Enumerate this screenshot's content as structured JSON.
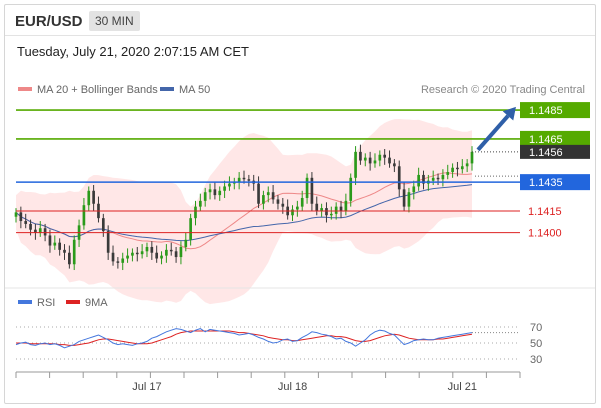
{
  "header": {
    "pair": "EUR/USD",
    "timeframe": "30 MIN"
  },
  "datetime": "Tuesday, July 21, 2020 2:07:15 AM CET",
  "legend": {
    "ma20": "MA 20 + Bollinger Bands",
    "ma50": "MA 50",
    "credit": "Research © 2020 Trading Central",
    "rsi": "RSI",
    "ma9": "9MA"
  },
  "colors": {
    "resistance": "#55aa00",
    "support": "#dd2222",
    "pivot": "#2266dd",
    "candle_up": "#2a9a1a",
    "candle_down": "#3a3a3a",
    "bollinger": "#ffc9c9",
    "ma20": "#ee8888",
    "ma50": "#4466aa",
    "rsi": "#4477dd",
    "rsi_ma": "#dd2222"
  },
  "chart_data": [
    {
      "type": "candlestick",
      "ylim": [
        1.1365,
        1.1492
      ],
      "x_ticks": [
        {
          "label": "Jul 17",
          "index": 27
        },
        {
          "label": "Jul 18",
          "index": 57
        },
        {
          "label": "Jul 21",
          "index": 92
        }
      ],
      "levels": [
        {
          "value": 1.1485,
          "label": "1.1485",
          "type": "resistance"
        },
        {
          "value": 1.1465,
          "label": "1.1465",
          "type": "resistance"
        },
        {
          "value": 1.1435,
          "label": "1.1435",
          "type": "pivot"
        },
        {
          "value": 1.1415,
          "label": "1.1415",
          "type": "support"
        },
        {
          "value": 1.14,
          "label": "1.1400",
          "type": "support"
        }
      ],
      "last_price": {
        "value": 1.1456,
        "label": "1.1456"
      },
      "close": [
        1.1414,
        1.1408,
        1.1406,
        1.1402,
        1.14,
        1.1403,
        1.1398,
        1.1391,
        1.1393,
        1.1388,
        1.1386,
        1.1378,
        1.1395,
        1.1405,
        1.1419,
        1.1429,
        1.142,
        1.141,
        1.1401,
        1.1386,
        1.138,
        1.1379,
        1.1382,
        1.1384,
        1.1386,
        1.1385,
        1.1387,
        1.139,
        1.1386,
        1.1382,
        1.1384,
        1.1388,
        1.1387,
        1.1383,
        1.139,
        1.1395,
        1.141,
        1.1418,
        1.1422,
        1.1428,
        1.143,
        1.1426,
        1.1429,
        1.1432,
        1.1434,
        1.1435,
        1.1438,
        1.1437,
        1.1436,
        1.1434,
        1.142,
        1.1426,
        1.1428,
        1.1423,
        1.142,
        1.1418,
        1.1412,
        1.1416,
        1.1418,
        1.1424,
        1.1438,
        1.142,
        1.1415,
        1.1417,
        1.1412,
        1.1413,
        1.1418,
        1.1415,
        1.1422,
        1.1438,
        1.1456,
        1.145,
        1.1452,
        1.1448,
        1.145,
        1.1454,
        1.1452,
        1.1448,
        1.1446,
        1.143,
        1.1418,
        1.1428,
        1.1432,
        1.144,
        1.1434,
        1.1436,
        1.1438,
        1.1437,
        1.144,
        1.1442,
        1.1445,
        1.1444,
        1.1446,
        1.1448,
        1.1456
      ],
      "rsi": [
        48,
        50,
        51,
        48,
        47,
        49,
        50,
        48,
        49,
        47,
        44,
        46,
        48,
        52,
        54,
        56,
        58,
        60,
        57,
        54,
        50,
        48,
        49,
        48,
        47,
        49,
        50,
        52,
        56,
        58,
        61,
        64,
        66,
        68,
        67,
        65,
        63,
        66,
        68,
        64,
        67,
        66,
        65,
        64,
        63,
        62,
        60,
        61,
        62,
        60,
        57,
        55,
        52,
        50,
        51,
        54,
        55,
        52,
        53,
        57,
        60,
        64,
        63,
        61,
        60,
        58,
        55,
        56,
        52,
        50,
        46,
        50,
        54,
        60,
        64,
        66,
        65,
        62,
        60,
        54,
        48,
        50,
        53,
        54,
        55,
        54,
        54,
        56,
        57,
        58,
        59,
        60,
        61,
        62,
        63
      ],
      "rsi_ma": [
        50,
        50,
        50,
        49,
        49,
        49,
        49,
        49,
        49,
        48,
        48,
        47,
        47,
        48,
        49,
        50,
        52,
        54,
        55,
        55,
        54,
        53,
        52,
        51,
        50,
        49,
        49,
        49,
        50,
        52,
        54,
        56,
        58,
        61,
        63,
        64,
        65,
        65,
        65,
        65,
        65,
        65,
        65,
        65,
        65,
        64,
        63,
        63,
        62,
        61,
        60,
        59,
        57,
        56,
        55,
        54,
        54,
        53,
        53,
        54,
        55,
        56,
        57,
        58,
        59,
        59,
        58,
        58,
        57,
        55,
        53,
        52,
        52,
        53,
        55,
        57,
        59,
        60,
        61,
        60,
        58,
        56,
        55,
        54,
        54,
        54,
        54,
        55,
        55,
        56,
        57,
        58,
        59,
        60,
        61
      ],
      "rsi_ylim": [
        20,
        80
      ],
      "rsi_levels": [
        70,
        50,
        30
      ]
    }
  ]
}
